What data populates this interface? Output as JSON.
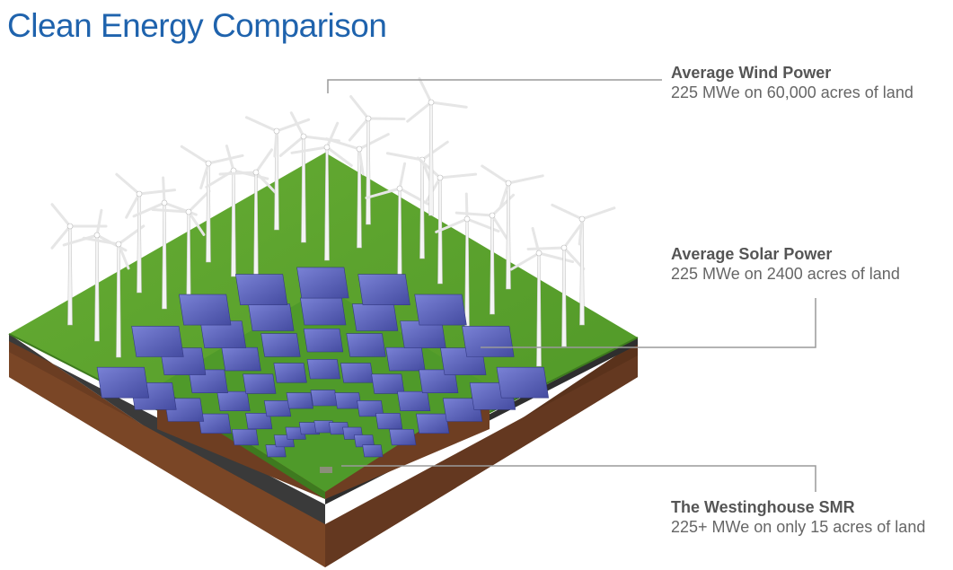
{
  "title": "Clean Energy Comparison",
  "callouts": {
    "wind": {
      "heading": "Average Wind Power",
      "detail": "225 MWe on 60,000 acres of land"
    },
    "solar": {
      "heading": "Average Solar Power",
      "detail": "225 MWe on 2400 acres of land"
    },
    "smr": {
      "heading": "The Westinghouse SMR",
      "detail": "225+ MWe on only 15 acres of land"
    }
  },
  "colors": {
    "title": "#1f63ad",
    "grass": "#5aa02c",
    "soil": "#6b3d22",
    "panel": "#5a62b8",
    "leader_line": "#9a9a9a"
  }
}
